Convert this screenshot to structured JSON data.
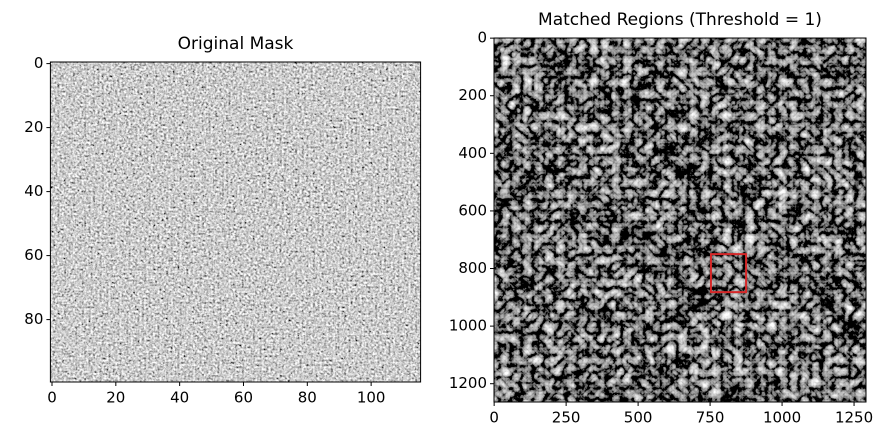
{
  "chart_data": [
    {
      "type": "image",
      "title": "Original Mask",
      "xlim": [
        -0.5,
        115.5
      ],
      "ylim": [
        99.5,
        -0.5
      ],
      "xticks": [
        0,
        20,
        40,
        60,
        80,
        100
      ],
      "yticks": [
        0,
        20,
        40,
        60,
        80
      ]
    },
    {
      "type": "image",
      "title": "Matched Regions (Threshold = 1)",
      "xlim": [
        -0.5,
        1291.5
      ],
      "ylim": [
        1263.5,
        -0.5
      ],
      "xticks": [
        0,
        250,
        500,
        750,
        1000,
        1250
      ],
      "yticks": [
        0,
        200,
        400,
        600,
        800,
        1000,
        1200
      ],
      "highlight_box": {
        "x": 753,
        "y": 750,
        "width": 122,
        "height": 132,
        "color": "#d62728"
      }
    }
  ]
}
